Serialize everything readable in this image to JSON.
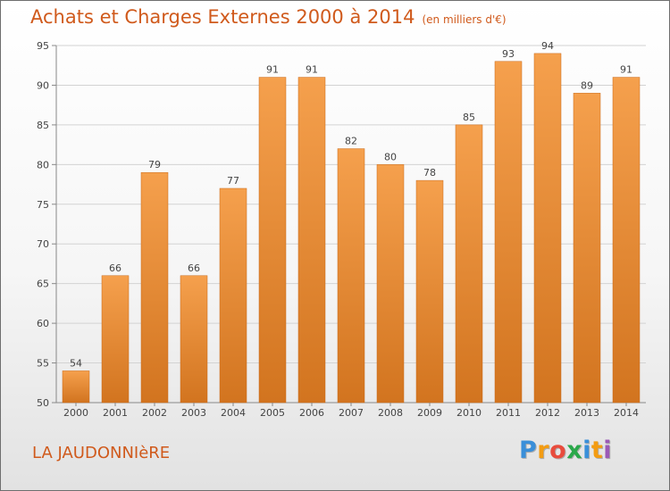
{
  "title": "Achats et Charges Externes 2000 à 2014",
  "subtitle": "(en milliers d'€)",
  "location": "LA JAUDONNIèRE",
  "brand": {
    "letters": [
      {
        "char": "P",
        "color": "#3a8fd9"
      },
      {
        "char": "r",
        "color": "#f39c12"
      },
      {
        "char": "o",
        "color": "#e84c3d"
      },
      {
        "char": "x",
        "color": "#2aa84a"
      },
      {
        "char": "i",
        "color": "#3a8fd9"
      },
      {
        "char": "t",
        "color": "#f39c12"
      },
      {
        "char": "i",
        "color": "#9b59b6"
      }
    ]
  },
  "colors": {
    "accent": "#d05a1c",
    "bar_light": "#f5a04d",
    "bar_dark": "#d2741f",
    "grid": "#d3d3d3",
    "axis": "#888888"
  },
  "chart_data": {
    "type": "bar",
    "categories": [
      "2000",
      "2001",
      "2002",
      "2003",
      "2004",
      "2005",
      "2006",
      "2007",
      "2008",
      "2009",
      "2010",
      "2011",
      "2012",
      "2013",
      "2014"
    ],
    "values": [
      54,
      66,
      79,
      66,
      77,
      91,
      91,
      82,
      80,
      78,
      85,
      93,
      94,
      89,
      91
    ],
    "ylim": [
      50,
      95
    ],
    "yticks": [
      50,
      55,
      60,
      65,
      70,
      75,
      80,
      85,
      90,
      95
    ],
    "grid": true,
    "data_labels": true
  }
}
